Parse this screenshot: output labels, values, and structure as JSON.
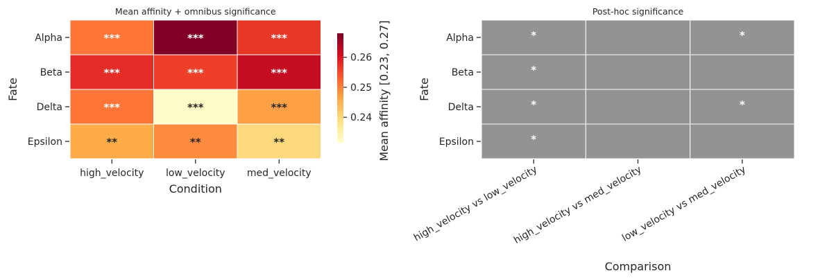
{
  "chart_data": [
    {
      "type": "heatmap",
      "title": "Mean affinity + omnibus significance",
      "xlabel": "Condition",
      "ylabel": "Fate",
      "x_categories": [
        "high_velocity",
        "low_velocity",
        "med_velocity"
      ],
      "y_categories": [
        "Alpha",
        "Beta",
        "Delta",
        "Epsilon"
      ],
      "values": [
        [
          0.251,
          0.268,
          0.257
        ],
        [
          0.258,
          0.256,
          0.262
        ],
        [
          0.251,
          0.232,
          0.247
        ],
        [
          0.246,
          0.249,
          0.24
        ]
      ],
      "annotations": [
        [
          "***",
          "***",
          "***"
        ],
        [
          "***",
          "***",
          "***"
        ],
        [
          "***",
          "***",
          "***"
        ],
        [
          "**",
          "**",
          "**"
        ]
      ],
      "colorbar": {
        "label": "Mean affinity [0.23, 0.27]",
        "range": [
          0.2315,
          0.268
        ],
        "ticks": [
          "0.24",
          "0.25",
          "0.26"
        ],
        "colormap": [
          "#ffffcc",
          "#fee187",
          "#feab49",
          "#fc5b2e",
          "#d41020",
          "#800026"
        ]
      },
      "grid": false
    },
    {
      "type": "heatmap",
      "title": "Post-hoc significance",
      "xlabel": "Comparison",
      "ylabel": "Fate",
      "x_categories": [
        "high_velocity vs low_velocity",
        "high_velocity vs med_velocity",
        "low_velocity vs med_velocity"
      ],
      "y_categories": [
        "Alpha",
        "Beta",
        "Delta",
        "Epsilon"
      ],
      "annotations": [
        [
          "*",
          "",
          "*"
        ],
        [
          "*",
          "",
          ""
        ],
        [
          "*",
          "",
          "*"
        ],
        [
          "*",
          "",
          ""
        ]
      ],
      "cell_color": "#939393",
      "grid": false
    }
  ]
}
